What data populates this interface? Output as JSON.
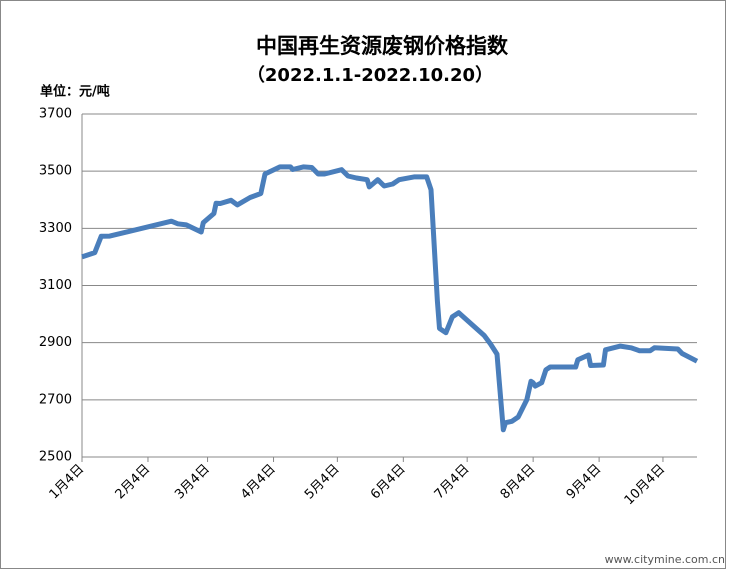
{
  "chart_data": {
    "type": "line",
    "title": "中国再生资源废钢价格指数",
    "subtitle": "（2022.1.1-2022.10.20）",
    "unit_label": "单位：元/吨",
    "watermark": "www.citymine.com.cn",
    "x": [
      "1月4日",
      "1月10日",
      "1月13日",
      "1月17日",
      "2月15日",
      "2月18日",
      "2月22日",
      "3月1日",
      "3月2日",
      "3月7日",
      "3月8日",
      "3月10日",
      "3月15日",
      "3月18日",
      "3月24日",
      "3月29日",
      "3月31日",
      "4月7日",
      "4月12日",
      "4月13日",
      "4月18日",
      "4月22日",
      "4月25日",
      "4月28日",
      "5月6日",
      "5月9日",
      "5月13日",
      "5月18日",
      "5月19日",
      "5月23日",
      "5月26日",
      "5月30日",
      "6月2日",
      "6月9日",
      "6月15日",
      "6月17日",
      "6月20日",
      "6月21日",
      "6月24日",
      "6月27日",
      "6月30日",
      "7月12日",
      "7月15日",
      "7月18日",
      "7月19日",
      "7月21日",
      "7月22日",
      "7月25日",
      "7月28日",
      "8月1日",
      "8月3日",
      "8月4日",
      "8月5日",
      "8月8日",
      "8月10日",
      "8月12日",
      "8月24日",
      "8月25日",
      "8月30日",
      "8月31日",
      "9月6日",
      "9月7日",
      "9月14日",
      "9月19日",
      "9月23日",
      "9月28日",
      "9月30日",
      "10月11日",
      "10月13日",
      "10月20日"
    ],
    "series": [
      {
        "color": "#4a7ebb",
        "values": [
          3200,
          3215,
          3272,
          3273,
          3325,
          3316,
          3312,
          3287,
          3320,
          3352,
          3388,
          3387,
          3398,
          3382,
          3408,
          3422,
          3490,
          3515,
          3515,
          3506,
          3515,
          3513,
          3490,
          3490,
          3505,
          3483,
          3476,
          3470,
          3445,
          3470,
          3448,
          3455,
          3470,
          3480,
          3480,
          3435,
          3045,
          2950,
          2935,
          2990,
          3005,
          2925,
          2895,
          2860,
          2770,
          2595,
          2620,
          2625,
          2640,
          2700,
          2765,
          2760,
          2748,
          2760,
          2805,
          2815,
          2815,
          2840,
          2857,
          2820,
          2822,
          2875,
          2888,
          2882,
          2872,
          2872,
          2882,
          2878,
          2862,
          2835
        ]
      }
    ],
    "xlim": [
      "1月4日",
      "10月20日"
    ],
    "xticks": [
      "1月4日",
      "2月4日",
      "3月4日",
      "4月4日",
      "5月4日",
      "6月4日",
      "7月4日",
      "8月4日",
      "9月4日",
      "10月4日"
    ],
    "ylim": [
      2500,
      3700
    ],
    "yticks": [
      2500,
      2700,
      2900,
      3100,
      3300,
      3500,
      3700
    ],
    "grid": true
  }
}
